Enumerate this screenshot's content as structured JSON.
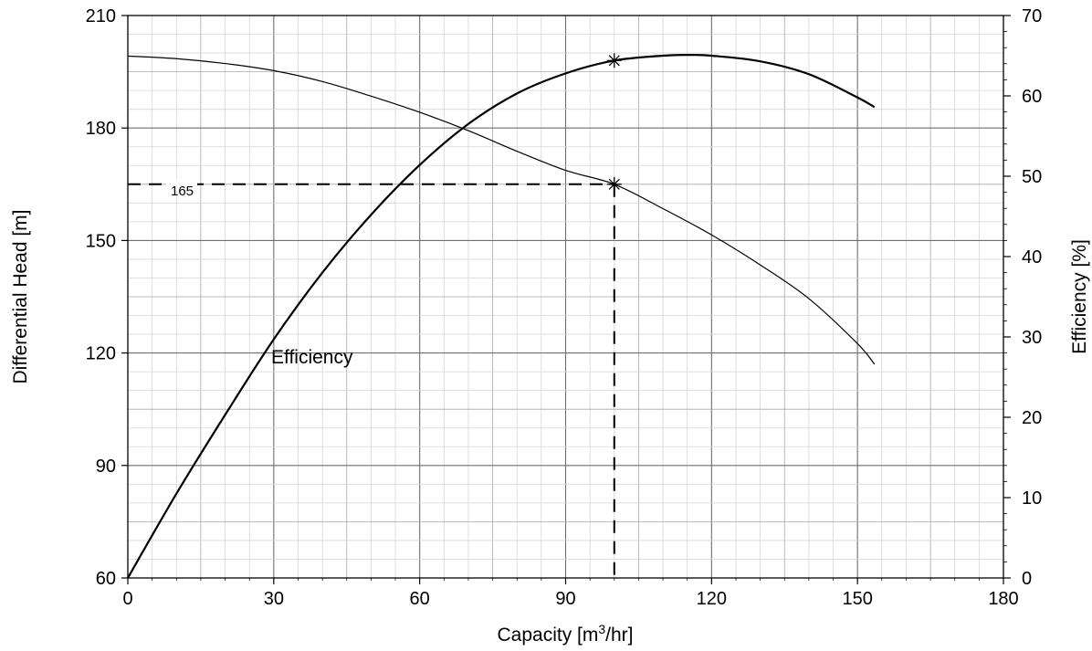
{
  "chart_data": {
    "type": "line",
    "xlabel": "Capacity [m³/hr]",
    "ylabel_left": "Differential Head  [m]",
    "ylabel_right": "Efficiency [%]",
    "xlim": [
      0,
      180
    ],
    "ylim_left": [
      60,
      210
    ],
    "ylim_right": [
      0,
      70
    ],
    "x_ticks": [
      "0",
      "30",
      "60",
      "90",
      "120",
      "150",
      "180"
    ],
    "y_left_ticks": [
      "60",
      "90",
      "120",
      "150",
      "180",
      "210"
    ],
    "y_right_ticks": [
      "0",
      "10",
      "20",
      "30",
      "40",
      "50",
      "60",
      "70"
    ],
    "grid": true,
    "series": [
      {
        "axis": "left",
        "x": [
          0,
          10,
          20,
          30,
          40,
          50,
          60,
          70,
          80,
          90,
          100,
          110,
          120,
          130,
          140,
          150,
          153.5
        ],
        "values": [
          199.2,
          198.5,
          197.2,
          195.3,
          192.4,
          188.5,
          184.2,
          179.3,
          173.8,
          168.7,
          165,
          158.5,
          151.5,
          143.5,
          134.5,
          122.5,
          117
        ]
      },
      {
        "axis": "right",
        "x": [
          0,
          10,
          20,
          30,
          40,
          50,
          60,
          70,
          80,
          90,
          100,
          110,
          115,
          120,
          130,
          140,
          150,
          153.5
        ],
        "values": [
          0,
          10.5,
          20.3,
          29.7,
          38.0,
          45.2,
          51.4,
          56.5,
          60.3,
          62.8,
          64.4,
          65.0,
          65.1,
          65.0,
          64.3,
          62.7,
          59.8,
          58.6
        ]
      }
    ],
    "markers": [
      {
        "axis": "left",
        "x": 100,
        "y": 165
      },
      {
        "axis": "right",
        "x": 100,
        "y": 64.4
      }
    ],
    "operating_point": {
      "x": 100,
      "y": 165
    },
    "annotations": {
      "head_value_label": "165",
      "efficiency_label": "Efficiency"
    }
  }
}
